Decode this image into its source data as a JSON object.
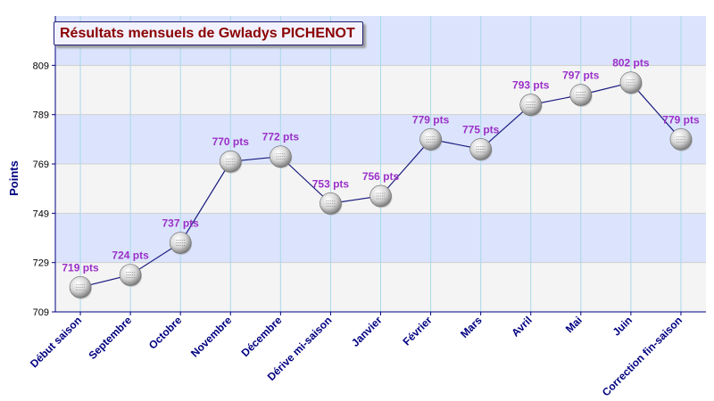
{
  "title": "Résultats mensuels de Gwladys PICHENOT",
  "chart_data": {
    "type": "line",
    "title": "Résultats mensuels de Gwladys PICHENOT",
    "xlabel": "",
    "ylabel": "Points",
    "ylim": [
      709,
      829
    ],
    "yticks": [
      709,
      729,
      749,
      769,
      789,
      809
    ],
    "grid": true,
    "categories": [
      "Début saison",
      "Septembre",
      "Octobre",
      "Novembre",
      "Décembre",
      "Dérive mi-saison",
      "Janvier",
      "Février",
      "Mars",
      "Avril",
      "Mai",
      "Juin",
      "Correction fin-saison"
    ],
    "values": [
      719,
      724,
      737,
      770,
      772,
      753,
      756,
      779,
      775,
      793,
      797,
      802,
      779
    ],
    "point_labels": [
      "719 pts",
      "724 pts",
      "737 pts",
      "770 pts",
      "772 pts",
      "753 pts",
      "756 pts",
      "779 pts",
      "775 pts",
      "793 pts",
      "797 pts",
      "802 pts",
      "779 pts"
    ],
    "colors": {
      "line": "#1a1a80",
      "point_label": "#9b30c8",
      "axis_text": "#000080",
      "band_light": "#f4f4f4",
      "band_blue": "#dbe4fc",
      "vgrid": "#a8d8ea"
    }
  }
}
